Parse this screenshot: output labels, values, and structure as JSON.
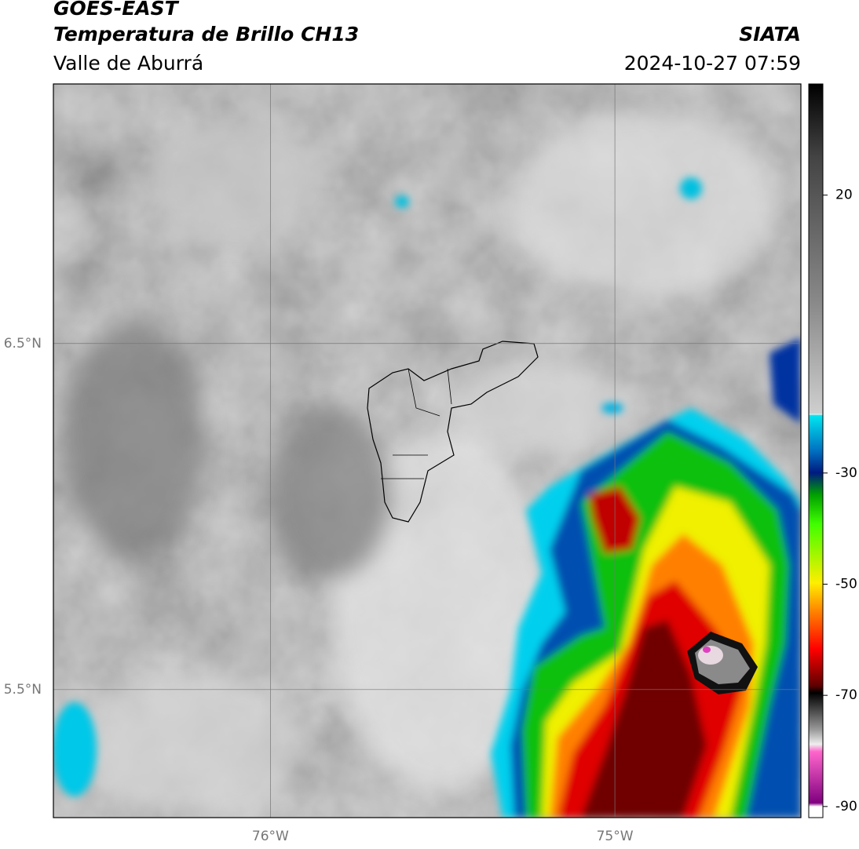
{
  "header": {
    "satellite": "GOES-EAST",
    "product": "Temperatura de Brillo CH13",
    "region": "Valle de Aburrá",
    "source": "SIATA",
    "datetime": "2024-10-27 07:59"
  },
  "map": {
    "lat_range": [
      5.13,
      7.25
    ],
    "lon_range": [
      -76.63,
      -74.46
    ],
    "lat_ticks": [
      {
        "value": 6.5,
        "label": "6.5°N"
      },
      {
        "value": 5.5,
        "label": "5.5°N"
      }
    ],
    "lon_ticks": [
      {
        "value": -76,
        "label": "76°W"
      },
      {
        "value": -75,
        "label": "75°W"
      }
    ]
  },
  "colorbar": {
    "range": [
      -92,
      40
    ],
    "ticks": [
      20,
      -30,
      -50,
      -70,
      -90
    ]
  }
}
